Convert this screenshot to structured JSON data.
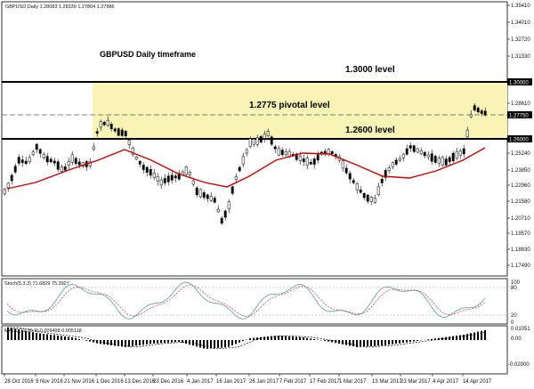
{
  "window": {
    "symbol_info": "GBPUSD,Daily  1.28083 1.28339 1.27804 1.27886"
  },
  "annotations": {
    "title": "GBPUSD Daily timeframe",
    "level_1_3000": "1.3000 level",
    "level_1_2775": "1.2775 pivotal level",
    "level_1_2600": "1.2600 level"
  },
  "price_axis": {
    "ticks": [
      "1.35410",
      "1.34010",
      "1.32720",
      "1.31330",
      "1.30000",
      "1.28610",
      "1.27750",
      "1.26000",
      "1.25240",
      "1.23850",
      "1.22960",
      "1.21580",
      "1.20710",
      "1.19570",
      "1.18830",
      "1.17490"
    ],
    "tags": {
      "upper": "1.30000",
      "current": "1.27750",
      "lower": "1.26000"
    }
  },
  "stoch_panel": {
    "label": "Stoch(5,3,3) 71.6829 75.3927",
    "ticks": [
      "100",
      "80",
      "20",
      "0"
    ]
  },
  "macd_panel": {
    "label": "MACD(12,26,9) 0.009498 0.005118",
    "ticks": [
      "0.01051",
      "0.00",
      "-0.02000"
    ]
  },
  "time_axis": {
    "labels": [
      "28 Oct 2016",
      "9 Nov 2016",
      "21 Nov 2016",
      "1 Dec 2016",
      "13 Dec 2016",
      "23 Dec 2016",
      "4 Jan 2017",
      "16 Jan 2017",
      "26 Jan 2017",
      "7 Feb 2017",
      "17 Feb 2017",
      "1 Mar 2017",
      "13 Mar 2017",
      "23 Mar 2017",
      "4 Apr 2017",
      "14 Apr 2017"
    ]
  },
  "colors": {
    "background": "#ffffff",
    "candle": "#000000",
    "moving_average": "#cc0000",
    "zone_fill": "#f7f4b5",
    "stoch_main": "#6aa8b0",
    "stoch_signal": "#cc3333",
    "macd_hist": "#000000",
    "macd_signal": "#000000",
    "tag_fill": "#000000",
    "tag_text": "#ffffff"
  }
}
